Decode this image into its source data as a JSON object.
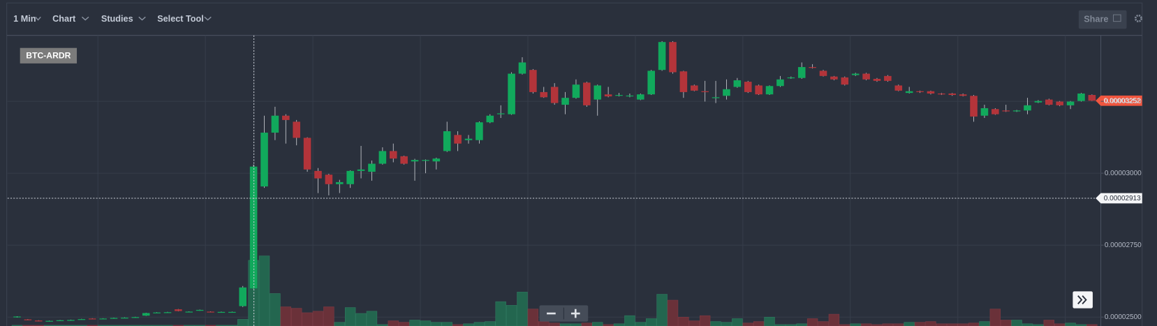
{
  "toolbar": {
    "interval": "1 Min",
    "menus": [
      "Chart",
      "Studies",
      "Select Tool"
    ],
    "share": "Share"
  },
  "chart_data": {
    "type": "candlestick",
    "title": "BTC-ARDR",
    "up_color": "#11a95c",
    "down_color": "#b3343a",
    "volume_up_color": "#23664f",
    "volume_down_color": "#6a3139",
    "open": [
      2.499e-05,
      2.492e-05,
      2.488e-05,
      2.486e-05,
      2.488e-05,
      2.49e-05,
      2.492e-05,
      2.495e-05,
      2.494e-05,
      2.496e-05,
      2.497e-05,
      2.498e-05,
      2.505e-05,
      2.515e-05,
      2.516e-05,
      2.527e-05,
      2.518e-05,
      2.523e-05,
      2.519e-05,
      2.518e-05,
      2.517e-05,
      2.538e-05,
      2.6e-05,
      2.954e-05,
      3.141e-05,
      3.2e-05,
      3.179e-05,
      3.123e-05,
      3.008e-05,
      2.995e-05,
      2.962e-05,
      2.962e-05,
      3.008e-05,
      3.005e-05,
      3.033e-05,
      3.077e-05,
      3.059e-05,
      3.041e-05,
      3.044e-05,
      3.041e-05,
      3.077e-05,
      3.133e-05,
      3.115e-05,
      3.115e-05,
      3.177e-05,
      3.205e-05,
      3.205e-05,
      3.346e-05,
      3.359e-05,
      3.282e-05,
      3.3e-05,
      3.238e-05,
      3.262e-05,
      3.315e-05,
      3.256e-05,
      3.274e-05,
      3.269e-05,
      3.269e-05,
      3.256e-05,
      3.274e-05,
      3.359e-05,
      3.456e-05,
      3.354e-05,
      3.305e-05,
      3.285e-05,
      3.262e-05,
      3.269e-05,
      3.3e-05,
      3.318e-05,
      3.305e-05,
      3.274e-05,
      3.303e-05,
      3.331e-05,
      3.331e-05,
      3.369e-05,
      3.356e-05,
      3.336e-05,
      3.333e-05,
      3.341e-05,
      3.346e-05,
      3.328e-05,
      3.338e-05,
      3.305e-05,
      3.279e-05,
      3.285e-05,
      3.285e-05,
      3.277e-05,
      3.277e-05,
      3.274e-05,
      3.269e-05,
      3.2e-05,
      3.223e-05,
      3.218e-05,
      3.215e-05,
      3.218e-05,
      3.246e-05,
      3.256e-05,
      3.249e-05,
      3.236e-05,
      3.251e-05,
      3.272e-05
    ],
    "high": [
      2.503e-05,
      2.493e-05,
      2.489e-05,
      2.488e-05,
      2.49e-05,
      2.491e-05,
      2.494e-05,
      2.496e-05,
      2.496e-05,
      2.498e-05,
      2.499e-05,
      2.501e-05,
      2.515e-05,
      2.517e-05,
      2.518e-05,
      2.528e-05,
      2.52e-05,
      2.526e-05,
      2.52e-05,
      2.519e-05,
      2.519e-05,
      2.608e-05,
      3.03e-05,
      3.2e-05,
      3.231e-05,
      3.205e-05,
      3.185e-05,
      3.125e-05,
      3.018e-05,
      2.998e-05,
      2.977e-05,
      3.01e-05,
      3.095e-05,
      3.044e-05,
      3.09e-05,
      3.103e-05,
      3.061e-05,
      3.05e-05,
      3.048e-05,
      3.054e-05,
      3.179e-05,
      3.146e-05,
      3.133e-05,
      3.18e-05,
      3.205e-05,
      3.236e-05,
      3.351e-05,
      3.403e-05,
      3.362e-05,
      3.3e-05,
      3.313e-05,
      3.282e-05,
      3.326e-05,
      3.318e-05,
      3.308e-05,
      3.3e-05,
      3.279e-05,
      3.277e-05,
      3.277e-05,
      3.359e-05,
      3.459e-05,
      3.459e-05,
      3.356e-05,
      3.308e-05,
      3.321e-05,
      3.321e-05,
      3.326e-05,
      3.331e-05,
      3.321e-05,
      3.308e-05,
      3.305e-05,
      3.338e-05,
      3.336e-05,
      3.385e-05,
      3.379e-05,
      3.359e-05,
      3.338e-05,
      3.336e-05,
      3.349e-05,
      3.349e-05,
      3.331e-05,
      3.341e-05,
      3.308e-05,
      3.3e-05,
      3.287e-05,
      3.287e-05,
      3.279e-05,
      3.279e-05,
      3.277e-05,
      3.272e-05,
      3.238e-05,
      3.226e-05,
      3.238e-05,
      3.22e-05,
      3.262e-05,
      3.254e-05,
      3.259e-05,
      3.251e-05,
      3.251e-05,
      3.279e-05,
      3.274e-05
    ],
    "low": [
      2.498e-05,
      2.489e-05,
      2.485e-05,
      2.485e-05,
      2.487e-05,
      2.489e-05,
      2.491e-05,
      2.493e-05,
      2.493e-05,
      2.495e-05,
      2.496e-05,
      2.497e-05,
      2.504e-05,
      2.514e-05,
      2.515e-05,
      2.52e-05,
      2.517e-05,
      2.522e-05,
      2.517e-05,
      2.517e-05,
      2.516e-05,
      2.535e-05,
      2.598e-05,
      2.949e-05,
      3.115e-05,
      3.103e-05,
      3.097e-05,
      3.005e-05,
      2.931e-05,
      2.923e-05,
      2.931e-05,
      2.949e-05,
      2.982e-05,
      2.974e-05,
      3.03e-05,
      3.038e-05,
      3.03e-05,
      2.974e-05,
      3e-05,
      3.013e-05,
      3.074e-05,
      3.077e-05,
      3.103e-05,
      3.103e-05,
      3.174e-05,
      3.192e-05,
      3.203e-05,
      3.343e-05,
      3.277e-05,
      3.262e-05,
      3.238e-05,
      3.205e-05,
      3.259e-05,
      3.231e-05,
      3.2e-05,
      3.264e-05,
      3.267e-05,
      3.264e-05,
      3.254e-05,
      3.272e-05,
      3.356e-05,
      3.346e-05,
      3.262e-05,
      3.285e-05,
      3.249e-05,
      3.244e-05,
      3.256e-05,
      3.297e-05,
      3.279e-05,
      3.272e-05,
      3.272e-05,
      3.3e-05,
      3.328e-05,
      3.328e-05,
      3.364e-05,
      3.336e-05,
      3.323e-05,
      3.305e-05,
      3.338e-05,
      3.323e-05,
      3.318e-05,
      3.318e-05,
      3.285e-05,
      3.277e-05,
      3.279e-05,
      3.274e-05,
      3.272e-05,
      3.269e-05,
      3.267e-05,
      3.179e-05,
      3.192e-05,
      3.203e-05,
      3.213e-05,
      3.213e-05,
      3.205e-05,
      3.244e-05,
      3.236e-05,
      3.233e-05,
      3.223e-05,
      3.249e-05,
      3.251e-05
    ],
    "close": [
      2.502e-05,
      2.49e-05,
      2.486e-05,
      2.487e-05,
      2.489e-05,
      2.49e-05,
      2.493e-05,
      2.494e-05,
      2.495e-05,
      2.497e-05,
      2.498e-05,
      2.5e-05,
      2.514e-05,
      2.516e-05,
      2.517e-05,
      2.521e-05,
      2.519e-05,
      2.525e-05,
      2.518e-05,
      2.518e-05,
      2.518e-05,
      2.603e-05,
      3.023e-05,
      3.141e-05,
      3.2e-05,
      3.185e-05,
      3.123e-05,
      3.013e-05,
      2.982e-05,
      2.962e-05,
      2.969e-05,
      3.008e-05,
      3.013e-05,
      3.033e-05,
      3.077e-05,
      3.051e-05,
      3.033e-05,
      3.046e-05,
      3.046e-05,
      3.051e-05,
      3.146e-05,
      3.103e-05,
      3.12e-05,
      3.177e-05,
      3.2e-05,
      3.208e-05,
      3.346e-05,
      3.385e-05,
      3.282e-05,
      3.264e-05,
      3.244e-05,
      3.262e-05,
      3.308e-05,
      3.236e-05,
      3.305e-05,
      3.267e-05,
      3.272e-05,
      3.27e-05,
      3.274e-05,
      3.356e-05,
      3.456e-05,
      3.351e-05,
      3.282e-05,
      3.287e-05,
      3.282e-05,
      3.264e-05,
      3.292e-05,
      3.323e-05,
      3.282e-05,
      3.274e-05,
      3.303e-05,
      3.326e-05,
      3.333e-05,
      3.369e-05,
      3.367e-05,
      3.338e-05,
      3.326e-05,
      3.308e-05,
      3.346e-05,
      3.326e-05,
      3.321e-05,
      3.321e-05,
      3.287e-05,
      3.285e-05,
      3.282e-05,
      3.277e-05,
      3.274e-05,
      3.272e-05,
      3.269e-05,
      3.197e-05,
      3.226e-05,
      3.205e-05,
      3.215e-05,
      3.218e-05,
      3.236e-05,
      3.251e-05,
      3.238e-05,
      3.236e-05,
      3.249e-05,
      3.277e-05,
      3.252e-05
    ],
    "volume": [
      1,
      1,
      1,
      1,
      1,
      1,
      1,
      1,
      1,
      1,
      1,
      1,
      1,
      1,
      1,
      1,
      1,
      1,
      1,
      1,
      1,
      9,
      89,
      95,
      44,
      26,
      24,
      18,
      20,
      26,
      5,
      25,
      17,
      20,
      2,
      7,
      5,
      8,
      7,
      5,
      5,
      2,
      3,
      5,
      6,
      33,
      28,
      46,
      23,
      6,
      4,
      3,
      3,
      4,
      5,
      2,
      3,
      14,
      5,
      10,
      43,
      35,
      12,
      7,
      14,
      6,
      5,
      10,
      4,
      6,
      12,
      2,
      2,
      3,
      10,
      6,
      16,
      2,
      3,
      3,
      2,
      3,
      3,
      5,
      5,
      6,
      3,
      3,
      3,
      4,
      6,
      23,
      8,
      8,
      3,
      2,
      8,
      3,
      4,
      2,
      2
    ],
    "ylim": [
      2.469e-05,
      3.479e-05
    ],
    "yticks": [
      {
        "value": 2.5e-05,
        "label": "0.00002500"
      },
      {
        "value": 2.75e-05,
        "label": "0.00002750"
      },
      {
        "value": 3e-05,
        "label": "0.00003000"
      },
      {
        "value": 3.25e-05,
        "label": "0.00003250"
      }
    ],
    "grid": true,
    "last_price": {
      "value": 3.252e-05,
      "label": "0.00003252"
    },
    "crosshair_price": {
      "value": 2.913e-05,
      "label": "0.00002913"
    }
  }
}
